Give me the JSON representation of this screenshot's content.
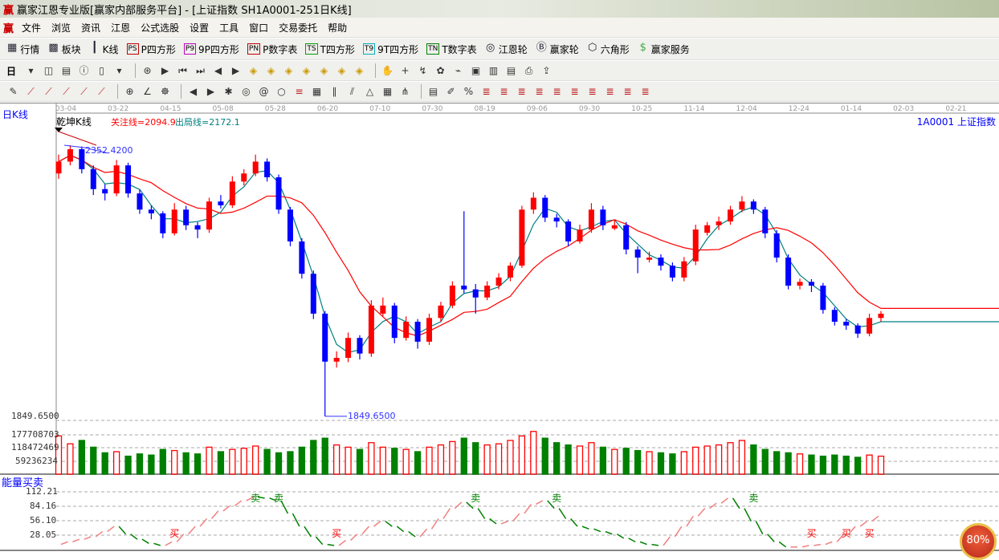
{
  "window": {
    "logo": "赢",
    "title": "赢家江恩专业版[赢家内部服务平台] - [上证指数  SH1A0001-251日K线]"
  },
  "menu": {
    "logo": "赢",
    "items": [
      "文件",
      "浏览",
      "资讯",
      "江恩",
      "公式选股",
      "设置",
      "工具",
      "窗口",
      "交易委托",
      "帮助"
    ]
  },
  "toolbar1": [
    {
      "icon": "quote-table-icon",
      "glyph": "▦",
      "label": "行情"
    },
    {
      "icon": "sector-grid-icon",
      "glyph": "▩",
      "label": "板块"
    },
    {
      "icon": "candlestick-icon",
      "glyph": "┃",
      "label": "K线"
    },
    {
      "icon": "ps-icon",
      "glyph": "PS",
      "label": "P四方形",
      "color": "#c00000"
    },
    {
      "icon": "p9-icon",
      "glyph": "P9",
      "label": "9P四方形",
      "color": "#c000c0"
    },
    {
      "icon": "pn-icon",
      "glyph": "PN",
      "label": "P数字表",
      "color": "#c00000"
    },
    {
      "icon": "ts-icon",
      "glyph": "TS",
      "label": "T四方形",
      "color": "#00a000"
    },
    {
      "icon": "t9-icon",
      "glyph": "T9",
      "label": "9T四方形",
      "color": "#00b0c0"
    },
    {
      "icon": "tn-icon",
      "glyph": "TN",
      "label": "T数字表",
      "color": "#008000"
    },
    {
      "icon": "gann-wheel-icon",
      "glyph": "◎",
      "label": "江恩轮"
    },
    {
      "icon": "big-wheel-icon",
      "glyph": "Ⓑ",
      "label": "赢家轮"
    },
    {
      "icon": "hexagon-icon",
      "glyph": "⬡",
      "label": "六角形"
    },
    {
      "icon": "dollar-icon",
      "glyph": "$",
      "label": "赢家服务"
    }
  ],
  "toolbar2": {
    "period": "日",
    "icons": [
      "dropdown-icon",
      "chart-type-icon",
      "doc-icon",
      "info-icon",
      "scale-icon",
      "dropdown-icon",
      "gann-icon",
      "play-icon",
      "first-icon",
      "last-icon",
      "prev-icon",
      "next-icon",
      "diamond-up-icon",
      "diamond-down-icon",
      "diamond-left-icon",
      "diamond-right-icon",
      "diamond-a-icon",
      "diamond-b-icon",
      "diamond-c-icon",
      "hand-icon",
      "crosshair-icon",
      "zoom-icon",
      "pattern-icon",
      "trend-icon",
      "calendar-21-icon",
      "book-icon",
      "notes-icon",
      "print-icon",
      "export-icon"
    ]
  },
  "toolbar3": {
    "icons": [
      "pencil-icon",
      "fan-1-icon",
      "fan-2-icon",
      "fan-3-icon",
      "fan-4-icon",
      "fan-5-icon",
      "circle-grid-icon",
      "angle-icon",
      "cycle-icon",
      "arrow-left-icon",
      "arrow-right-icon",
      "star-icon",
      "target-icon",
      "spiral-icon",
      "circle-icon",
      "fib-icon",
      "box-icon",
      "parallel-icon",
      "channel-icon",
      "triangle-icon",
      "grid-icon",
      "pitchfork-icon",
      "table-icon",
      "pen-icon",
      "percent-icon",
      "fib-1-icon",
      "fib-2-icon",
      "fib-3-icon",
      "fib-4-icon",
      "fib-5-icon",
      "fib-6-icon",
      "fib-7-icon",
      "fib-8-icon",
      "fib-9-icon",
      "fib-10-icon"
    ]
  },
  "chart": {
    "period_label": "日K线",
    "indicator_name": "乾坤K线",
    "focus_line": "关注线=2094.9",
    "exit_line": "出局线=2172.1",
    "symbol": "1A0001  上证指数",
    "high_label": "2352.4200",
    "low_label": "1849.6500",
    "low_axis_label": "1849.6500",
    "volume_ticks": [
      "177708703",
      "118472469",
      "59236234"
    ],
    "energy_title": "能量买卖",
    "energy_ticks": [
      "112.21",
      "84.16",
      "56.10",
      "28.05"
    ],
    "zoom_badge": "80%",
    "colors": {
      "up": "#ff0000",
      "down": "#0000ff",
      "mid": "#800080",
      "ma_short": "#008080",
      "ma_long": "#ff0000",
      "vol_up": "#ff0000",
      "vol_down": "#008000",
      "energy_up": "#f08080",
      "energy_down": "#008000",
      "sell": "#008000",
      "buy": "#ff0000"
    }
  },
  "chart_data": [
    {
      "type": "candlestick",
      "ylim": [
        1849.65,
        2352.42
      ],
      "x_ticks": [
        "03-04",
        "03-22",
        "04-15",
        "05-08",
        "05-28",
        "06-20",
        "07-10",
        "07-30",
        "08-19",
        "09-06",
        "09-30",
        "10-25",
        "11-14",
        "12-04",
        "12-24",
        "01-14",
        "02-03",
        "02-21"
      ],
      "ohlc": [
        [
          2300,
          2335,
          2290,
          2322
        ],
        [
          2322,
          2352.42,
          2315,
          2345
        ],
        [
          2345,
          2350,
          2300,
          2308
        ],
        [
          2308,
          2315,
          2260,
          2271
        ],
        [
          2271,
          2280,
          2250,
          2263
        ],
        [
          2263,
          2325,
          2258,
          2315
        ],
        [
          2315,
          2320,
          2255,
          2263
        ],
        [
          2263,
          2270,
          2225,
          2233
        ],
        [
          2233,
          2240,
          2215,
          2226
        ],
        [
          2226,
          2230,
          2180,
          2189
        ],
        [
          2189,
          2245,
          2185,
          2233
        ],
        [
          2233,
          2240,
          2195,
          2204
        ],
        [
          2204,
          2210,
          2180,
          2196
        ],
        [
          2196,
          2255,
          2190,
          2248
        ],
        [
          2248,
          2260,
          2235,
          2241
        ],
        [
          2241,
          2295,
          2236,
          2285
        ],
        [
          2285,
          2308,
          2278,
          2300
        ],
        [
          2300,
          2335,
          2295,
          2322
        ],
        [
          2322,
          2328,
          2285,
          2293
        ],
        [
          2293,
          2298,
          2225,
          2233
        ],
        [
          2233,
          2238,
          2165,
          2174
        ],
        [
          2174,
          2180,
          2105,
          2114
        ],
        [
          2114,
          2120,
          2030,
          2040
        ],
        [
          2040,
          2045,
          1849.65,
          1951
        ],
        [
          1951,
          1970,
          1940,
          1958
        ],
        [
          1958,
          2005,
          1950,
          1995
        ],
        [
          1995,
          2000,
          1955,
          1966
        ],
        [
          1966,
          2065,
          1960,
          2055
        ],
        [
          2040,
          2070,
          2035,
          2055
        ],
        [
          2055,
          2060,
          1985,
          1995
        ],
        [
          1995,
          2035,
          1990,
          2025
        ],
        [
          2025,
          2030,
          1975,
          1988
        ],
        [
          1988,
          2040,
          1982,
          2032
        ],
        [
          2032,
          2062,
          2025,
          2055
        ],
        [
          2055,
          2100,
          2050,
          2092
        ],
        [
          2092,
          2230,
          2078,
          2085
        ],
        [
          2085,
          2095,
          2040,
          2070
        ],
        [
          2070,
          2100,
          2065,
          2092
        ],
        [
          2092,
          2115,
          2085,
          2107
        ],
        [
          2107,
          2135,
          2100,
          2129
        ],
        [
          2129,
          2240,
          2125,
          2233
        ],
        [
          2233,
          2265,
          2225,
          2255
        ],
        [
          2255,
          2260,
          2210,
          2218
        ],
        [
          2218,
          2225,
          2200,
          2211
        ],
        [
          2211,
          2215,
          2165,
          2174
        ],
        [
          2174,
          2205,
          2170,
          2196
        ],
        [
          2196,
          2245,
          2190,
          2233
        ],
        [
          2233,
          2240,
          2195,
          2204
        ],
        [
          2198,
          2215,
          2195,
          2204
        ],
        [
          2204,
          2210,
          2150,
          2159
        ],
        [
          2159,
          2165,
          2115,
          2144
        ],
        [
          2140,
          2155,
          2135,
          2144
        ],
        [
          2144,
          2150,
          2120,
          2129
        ],
        [
          2129,
          2135,
          2100,
          2107
        ],
        [
          2107,
          2145,
          2100,
          2137
        ],
        [
          2137,
          2205,
          2130,
          2196
        ],
        [
          2190,
          2210,
          2185,
          2204
        ],
        [
          2204,
          2220,
          2195,
          2211
        ],
        [
          2211,
          2240,
          2205,
          2233
        ],
        [
          2233,
          2258,
          2228,
          2248
        ],
        [
          2248,
          2252,
          2225,
          2233
        ],
        [
          2233,
          2238,
          2180,
          2189
        ],
        [
          2189,
          2195,
          2135,
          2144
        ],
        [
          2144,
          2150,
          2085,
          2092
        ],
        [
          2092,
          2105,
          2085,
          2099
        ],
        [
          2099,
          2104,
          2080,
          2092
        ],
        [
          2092,
          2097,
          2040,
          2047
        ],
        [
          2047,
          2052,
          2018,
          2025
        ],
        [
          2025,
          2030,
          2010,
          2018
        ],
        [
          2018,
          2022,
          1995,
          2003
        ],
        [
          2003,
          2040,
          1998,
          2032
        ],
        [
          2032,
          2045,
          2025,
          2040
        ]
      ]
    },
    {
      "type": "bar",
      "name": "volume",
      "ylim": [
        0,
        177708703
      ],
      "values": [
        170,
        135,
        150,
        120,
        95,
        100,
        80,
        90,
        85,
        110,
        105,
        95,
        90,
        120,
        100,
        110,
        115,
        125,
        110,
        95,
        100,
        120,
        150,
        160,
        130,
        120,
        110,
        140,
        120,
        115,
        110,
        100,
        120,
        130,
        145,
        160,
        140,
        130,
        135,
        150,
        170,
        190,
        160,
        140,
        130,
        125,
        140,
        120,
        110,
        115,
        105,
        100,
        95,
        90,
        100,
        120,
        125,
        130,
        140,
        150,
        130,
        110,
        100,
        95,
        90,
        85,
        80,
        85,
        80,
        75,
        85,
        80
      ]
    },
    {
      "type": "line",
      "name": "能量买卖",
      "ylim": [
        0,
        112.21
      ],
      "values": [
        10,
        15,
        20,
        25,
        35,
        45,
        30,
        20,
        12,
        8,
        15,
        30,
        45,
        60,
        75,
        85,
        95,
        102,
        100,
        95,
        70,
        45,
        25,
        10,
        8,
        18,
        30,
        45,
        55,
        45,
        35,
        25,
        40,
        60,
        80,
        92,
        80,
        60,
        50,
        55,
        70,
        88,
        95,
        80,
        60,
        45,
        40,
        35,
        30,
        22,
        15,
        10,
        8,
        25,
        45,
        65,
        80,
        90,
        100,
        80,
        55,
        30,
        15,
        5,
        5,
        8,
        10,
        15,
        30,
        45,
        55,
        65
      ],
      "signals": [
        {
          "index": 10,
          "label": "买"
        },
        {
          "index": 17,
          "label": "卖"
        },
        {
          "index": 19,
          "label": "卖"
        },
        {
          "index": 24,
          "label": "买"
        },
        {
          "index": 36,
          "label": "卖"
        },
        {
          "index": 43,
          "label": "卖"
        },
        {
          "index": 60,
          "label": "卖"
        },
        {
          "index": 65,
          "label": "买"
        },
        {
          "index": 68,
          "label": "买"
        },
        {
          "index": 70,
          "label": "买"
        }
      ]
    }
  ]
}
